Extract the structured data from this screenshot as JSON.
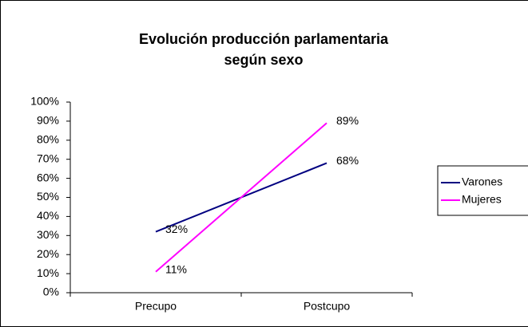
{
  "chart_data": {
    "type": "line",
    "title": [
      "Evolución producción parlamentaria",
      "según sexo"
    ],
    "categories": [
      "Precupo",
      "Postcupo"
    ],
    "series": [
      {
        "name": "Varones",
        "color": "#000080",
        "values": [
          32,
          68
        ],
        "value_labels": [
          "32%",
          "68%"
        ]
      },
      {
        "name": "Mujeres",
        "color": "#ff00ff",
        "values": [
          11,
          89
        ],
        "value_labels": [
          "11%",
          "89%"
        ]
      }
    ],
    "ylim": [
      0,
      100
    ],
    "yticks": [
      {
        "value": 0,
        "label": "0%"
      },
      {
        "value": 10,
        "label": "10%"
      },
      {
        "value": 20,
        "label": "20%"
      },
      {
        "value": 30,
        "label": "30%"
      },
      {
        "value": 40,
        "label": "40%"
      },
      {
        "value": 50,
        "label": "50%"
      },
      {
        "value": 60,
        "label": "60%"
      },
      {
        "value": 70,
        "label": "70%"
      },
      {
        "value": 80,
        "label": "80%"
      },
      {
        "value": 90,
        "label": "90%"
      },
      {
        "value": 100,
        "label": "100%"
      }
    ],
    "legend": "right"
  }
}
